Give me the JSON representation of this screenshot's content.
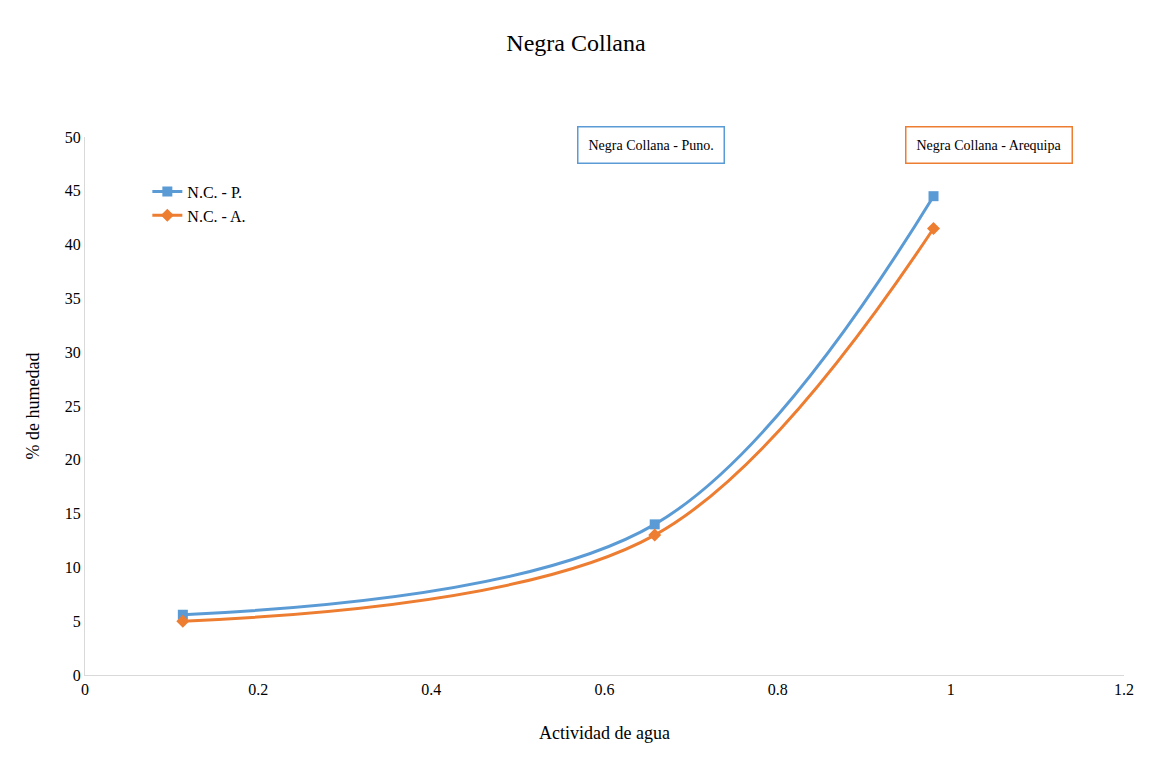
{
  "chart_data": {
    "type": "line",
    "title": "Negra Collana",
    "x_label": "Actividad de agua",
    "y_label": "% de humedad",
    "x": [
      0.113,
      0.658,
      0.98
    ],
    "series": [
      {
        "name": "N.C. - P.",
        "color": "#5b9bd5",
        "marker": "square",
        "line_style": "smooth",
        "values": [
          5.6,
          14,
          44.5
        ]
      },
      {
        "name": "N.C. - A.",
        "color": "#ed7d31",
        "marker": "diamond",
        "line_style": "smooth",
        "values": [
          5,
          13,
          41.5
        ]
      }
    ],
    "annotations": [
      "Negra Collana - Puno.",
      "Negra Collana - Arequipa"
    ],
    "xlim": [
      0,
      1.2
    ],
    "xticks": [
      0,
      0.2,
      0.4,
      0.6,
      0.8,
      1,
      1.2
    ],
    "ylim": [
      0,
      50
    ],
    "yticks": [
      0,
      5,
      10,
      15,
      20,
      25,
      30,
      35,
      40,
      45,
      50
    ],
    "grid": false,
    "legend": "upper left"
  }
}
